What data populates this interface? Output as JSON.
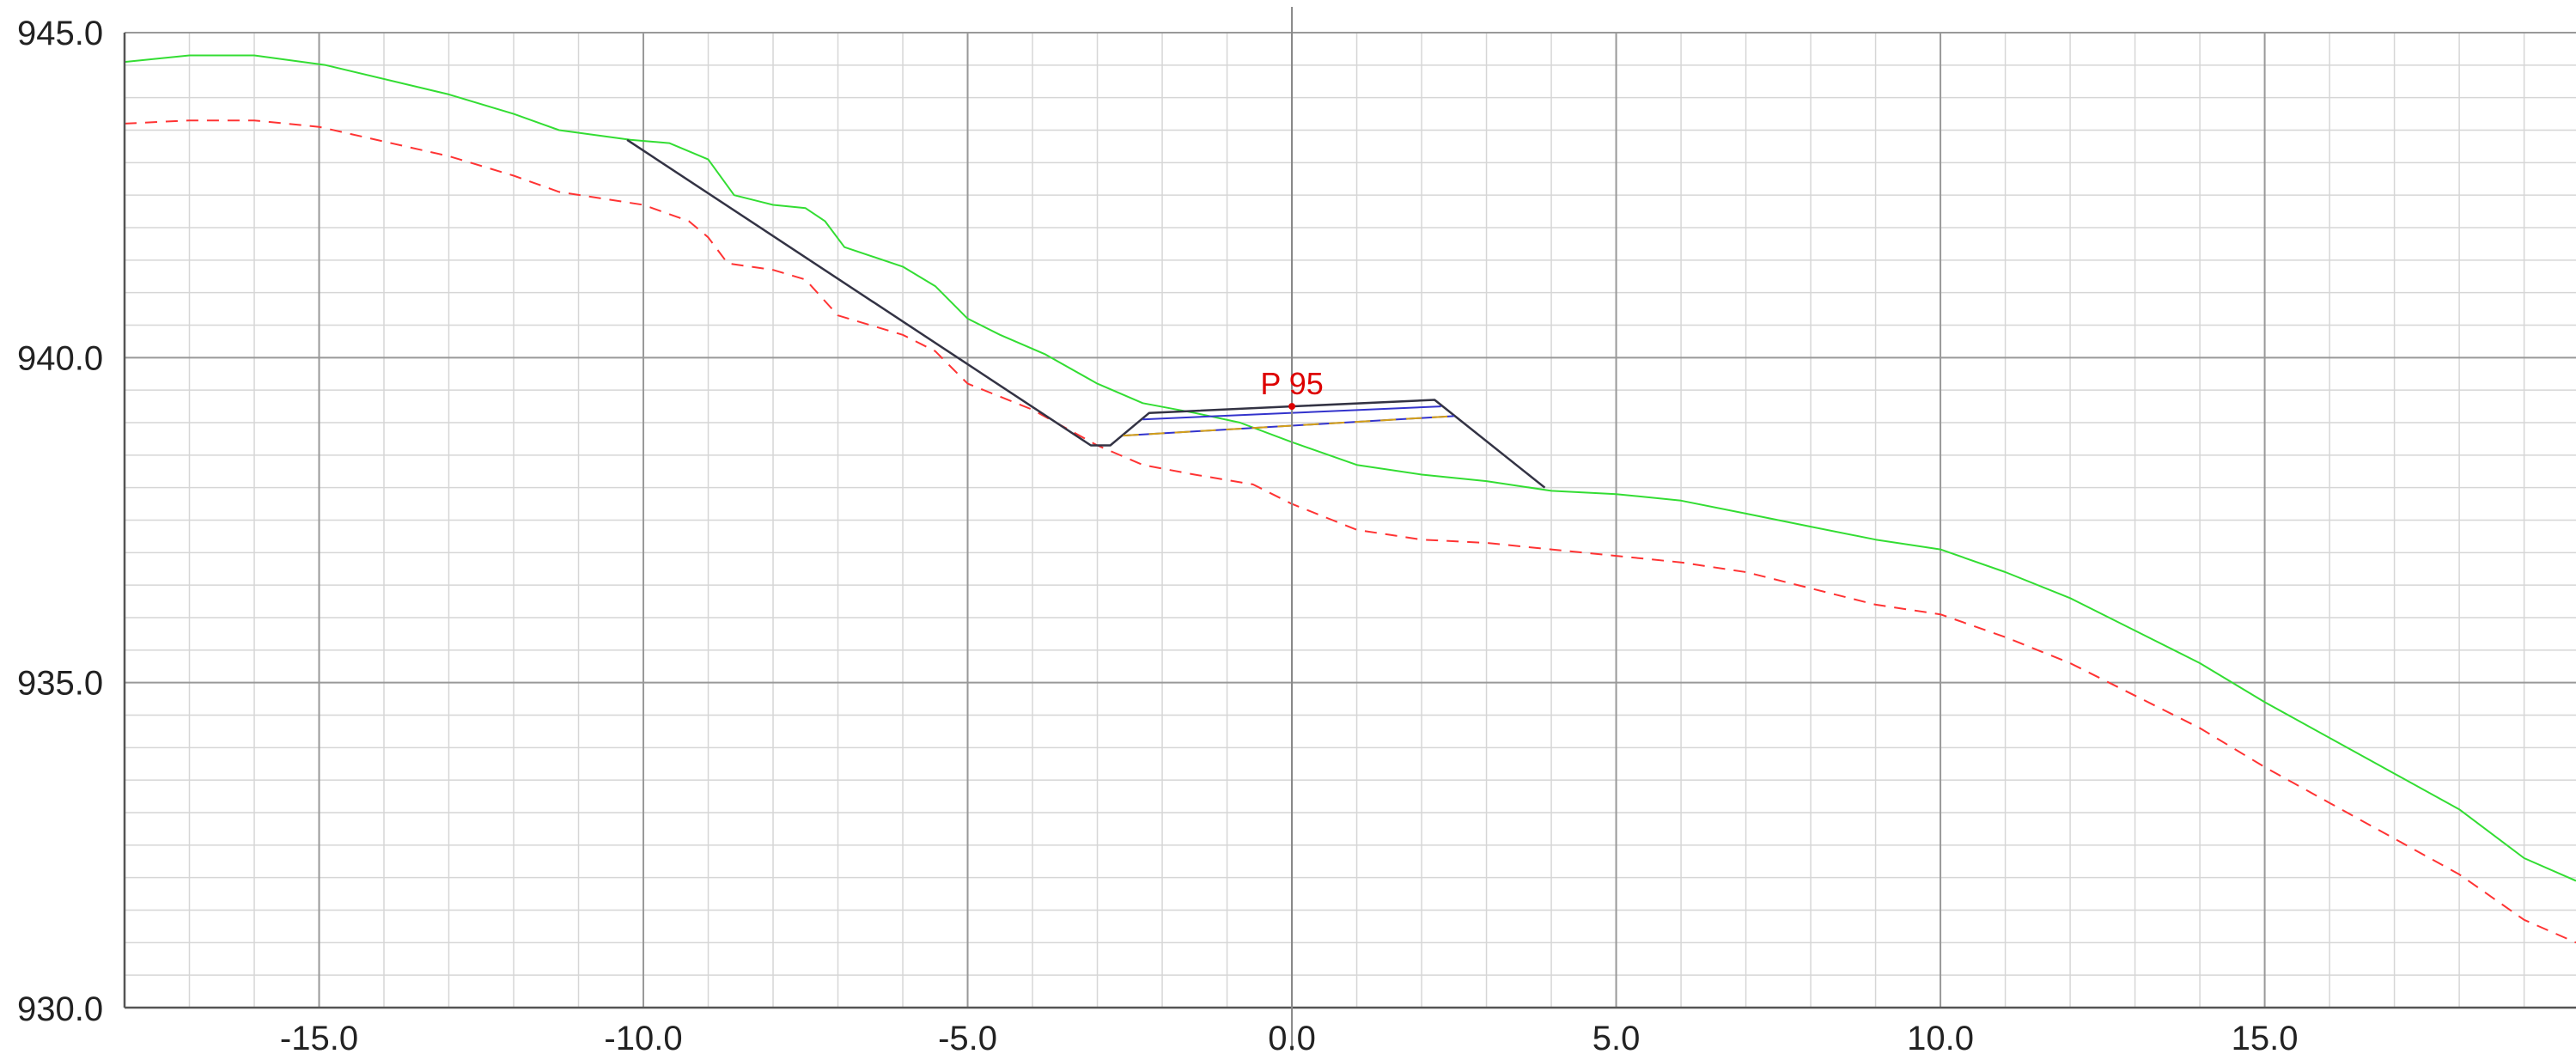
{
  "chart_data": {
    "type": "line",
    "title": "",
    "xlabel": "",
    "ylabel": "",
    "xlim": [
      -18.0,
      19.8
    ],
    "ylim": [
      930.0,
      945.0
    ],
    "grid": true,
    "x_major_ticks": [
      -15.0,
      -10.0,
      -5.0,
      0.0,
      5.0,
      10.0,
      15.0
    ],
    "x_tick_labels": [
      "-15.0",
      "-10.0",
      "-5.0",
      "0.0",
      "5.0",
      "10.0",
      "15.0"
    ],
    "y_major_ticks": [
      930.0,
      935.0,
      940.0,
      945.0
    ],
    "y_tick_labels": [
      "930.0",
      "935.0",
      "940.0",
      "945.0"
    ],
    "legend": "none",
    "colors": {
      "terrain": "#33dd33",
      "terrain_lower": "#ff3333",
      "design": "#333344",
      "design_inner": "#3333cc",
      "design_lower": "#d4a017",
      "marker": "#dd0000",
      "grid_major": "#999999",
      "grid_minor": "#d6d6d6",
      "axis": "#555555"
    },
    "series": [
      {
        "key": "terrain",
        "style": "solid",
        "points": [
          [
            -18.0,
            944.55
          ],
          [
            -17.0,
            944.65
          ],
          [
            -16.0,
            944.65
          ],
          [
            -14.9,
            944.5
          ],
          [
            -13.0,
            944.05
          ],
          [
            -12.0,
            943.75
          ],
          [
            -11.3,
            943.5
          ],
          [
            -10.2,
            943.35
          ],
          [
            -9.6,
            943.3
          ],
          [
            -9.0,
            943.05
          ],
          [
            -8.6,
            942.5
          ],
          [
            -8.0,
            942.35
          ],
          [
            -7.5,
            942.3
          ],
          [
            -7.2,
            942.1
          ],
          [
            -6.9,
            941.7
          ],
          [
            -6.0,
            941.4
          ],
          [
            -5.5,
            941.1
          ],
          [
            -5.0,
            940.6
          ],
          [
            -4.5,
            940.35
          ],
          [
            -3.8,
            940.05
          ],
          [
            -3.0,
            939.6
          ],
          [
            -2.3,
            939.3
          ],
          [
            -1.5,
            939.15
          ],
          [
            -0.8,
            939.0
          ],
          [
            0.0,
            938.7
          ],
          [
            1.0,
            938.35
          ],
          [
            2.0,
            938.2
          ],
          [
            3.0,
            938.1
          ],
          [
            4.0,
            937.95
          ],
          [
            5.0,
            937.9
          ],
          [
            6.0,
            937.8
          ],
          [
            7.0,
            937.6
          ],
          [
            8.0,
            937.4
          ],
          [
            9.0,
            937.2
          ],
          [
            10.0,
            937.05
          ],
          [
            11.0,
            936.7
          ],
          [
            12.0,
            936.3
          ],
          [
            13.0,
            935.8
          ],
          [
            14.0,
            935.3
          ],
          [
            15.0,
            934.7
          ],
          [
            16.0,
            934.15
          ],
          [
            17.0,
            933.6
          ],
          [
            18.0,
            933.05
          ],
          [
            19.0,
            932.3
          ],
          [
            19.8,
            931.95
          ]
        ]
      },
      {
        "key": "terrain_lower",
        "style": "dashed",
        "points": [
          [
            -18.0,
            943.6
          ],
          [
            -17.0,
            943.65
          ],
          [
            -16.0,
            943.65
          ],
          [
            -15.0,
            943.55
          ],
          [
            -13.0,
            943.1
          ],
          [
            -12.0,
            942.8
          ],
          [
            -11.3,
            942.55
          ],
          [
            -10.0,
            942.35
          ],
          [
            -9.3,
            942.1
          ],
          [
            -9.0,
            941.85
          ],
          [
            -8.7,
            941.45
          ],
          [
            -8.0,
            941.35
          ],
          [
            -7.5,
            941.2
          ],
          [
            -7.0,
            940.65
          ],
          [
            -6.0,
            940.35
          ],
          [
            -5.5,
            940.1
          ],
          [
            -5.0,
            939.6
          ],
          [
            -4.0,
            939.2
          ],
          [
            -3.0,
            938.65
          ],
          [
            -2.3,
            938.35
          ],
          [
            -1.5,
            938.2
          ],
          [
            -0.6,
            938.05
          ],
          [
            0.0,
            937.75
          ],
          [
            1.0,
            937.35
          ],
          [
            2.0,
            937.2
          ],
          [
            3.0,
            937.15
          ],
          [
            4.0,
            937.05
          ],
          [
            5.0,
            936.95
          ],
          [
            6.0,
            936.85
          ],
          [
            7.0,
            936.7
          ],
          [
            8.0,
            936.45
          ],
          [
            9.0,
            936.2
          ],
          [
            10.0,
            936.05
          ],
          [
            11.0,
            935.7
          ],
          [
            12.0,
            935.3
          ],
          [
            13.0,
            934.8
          ],
          [
            14.0,
            934.3
          ],
          [
            15.0,
            933.7
          ],
          [
            16.0,
            933.15
          ],
          [
            17.0,
            932.6
          ],
          [
            18.0,
            932.05
          ],
          [
            19.0,
            931.35
          ],
          [
            19.8,
            931.0
          ]
        ]
      },
      {
        "key": "design",
        "style": "solid",
        "points": [
          [
            -10.25,
            943.35
          ],
          [
            -3.1,
            938.65
          ],
          [
            -2.8,
            938.65
          ],
          [
            -2.2,
            939.15
          ],
          [
            2.2,
            939.35
          ],
          [
            3.9,
            938.0
          ]
        ]
      },
      {
        "key": "design_inner",
        "style": "solid",
        "points": [
          [
            -2.3,
            939.05
          ],
          [
            2.3,
            939.25
          ]
        ]
      },
      {
        "key": "design_inner",
        "style": "solid",
        "points": [
          [
            -2.6,
            938.8
          ],
          [
            2.5,
            939.1
          ]
        ]
      },
      {
        "key": "design_lower",
        "style": "dashed",
        "points": [
          [
            -2.6,
            938.8
          ],
          [
            2.5,
            939.1
          ]
        ]
      }
    ],
    "annotations": [
      {
        "label": "P 95",
        "x": 0.0,
        "y": 939.25
      }
    ]
  }
}
